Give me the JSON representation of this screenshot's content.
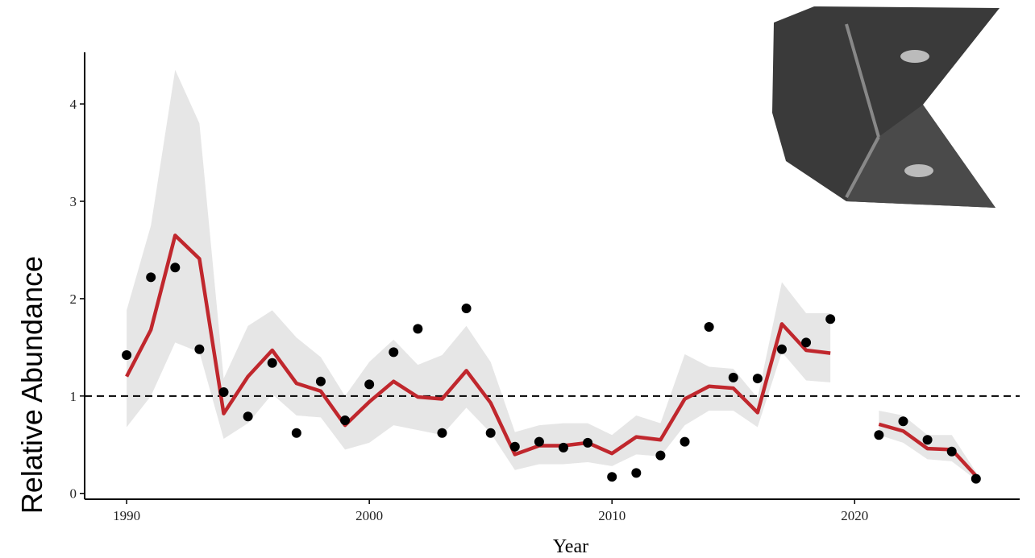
{
  "chart_data": {
    "type": "line",
    "x_label": "Year",
    "y_label": "Relative Abundance",
    "x": [
      1990,
      1991,
      1992,
      1993,
      1994,
      1995,
      1996,
      1997,
      1998,
      1999,
      2000,
      2001,
      2002,
      2003,
      2004,
      2005,
      2006,
      2007,
      2008,
      2009,
      2010,
      2011,
      2012,
      2013,
      2014,
      2015,
      2016,
      2017,
      2018,
      2019,
      2020,
      2021,
      2022,
      2023,
      2024,
      2025
    ],
    "points": [
      1.42,
      2.22,
      2.32,
      1.48,
      1.04,
      0.79,
      1.34,
      0.62,
      1.15,
      0.75,
      1.12,
      1.45,
      1.69,
      0.62,
      1.9,
      0.62,
      0.48,
      0.53,
      0.47,
      0.52,
      0.17,
      0.21,
      0.39,
      0.53,
      1.71,
      1.19,
      1.18,
      1.48,
      1.55,
      1.79,
      null,
      0.6,
      0.74,
      0.55,
      0.43,
      0.15
    ],
    "fit": [
      1.2,
      1.68,
      2.65,
      2.41,
      0.82,
      1.2,
      1.47,
      1.13,
      1.05,
      0.7,
      0.94,
      1.15,
      0.99,
      0.97,
      1.26,
      0.93,
      0.4,
      0.49,
      0.49,
      0.52,
      0.41,
      0.58,
      0.55,
      0.97,
      1.1,
      1.08,
      0.83,
      1.74,
      1.47,
      1.44,
      null,
      0.71,
      0.64,
      0.46,
      0.45,
      0.18
    ],
    "fit_lower": [
      0.68,
      1.0,
      1.55,
      1.45,
      0.56,
      0.72,
      1.02,
      0.8,
      0.78,
      0.45,
      0.52,
      0.7,
      0.65,
      0.6,
      0.88,
      0.62,
      0.24,
      0.3,
      0.3,
      0.32,
      0.28,
      0.4,
      0.38,
      0.7,
      0.85,
      0.85,
      0.68,
      1.45,
      1.16,
      1.14,
      null,
      0.6,
      0.52,
      0.35,
      0.33,
      0.14
    ],
    "fit_upper": [
      1.88,
      2.75,
      4.35,
      3.8,
      1.18,
      1.72,
      1.88,
      1.6,
      1.4,
      1.0,
      1.35,
      1.58,
      1.32,
      1.42,
      1.72,
      1.35,
      0.63,
      0.7,
      0.72,
      0.72,
      0.6,
      0.8,
      0.72,
      1.43,
      1.3,
      1.28,
      0.98,
      2.17,
      1.85,
      1.85,
      null,
      0.85,
      0.8,
      0.6,
      0.6,
      0.22
    ],
    "line_color": "#c0272d",
    "band_color": "#e6e6e6",
    "point_color": "#000000",
    "reference_line": 1,
    "xlim": [
      1988.27,
      2026.8
    ],
    "ylim": [
      -0.06,
      4.53
    ],
    "xticks": [
      1990,
      2000,
      2010,
      2020
    ],
    "yticks": [
      0,
      1,
      2,
      3,
      4
    ]
  }
}
